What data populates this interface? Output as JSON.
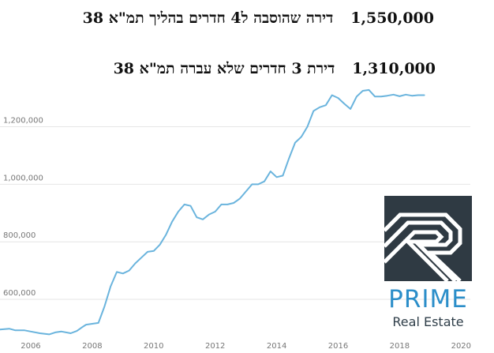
{
  "headlines": [
    {
      "price": "1,550,000",
      "text": "דירה שהוסבה ל4 חדרים בהליך תמ\"א 38"
    },
    {
      "price": "1,310,000",
      "text": "דירת 3 חדרים שלא עברה תמ\"א 38"
    }
  ],
  "logo": {
    "name": "PRIME",
    "subtitle": "Real Estate",
    "colors": {
      "mark_bg": "#2f3a43",
      "name": "#2b8ec9",
      "subtitle": "#2f3e49",
      "mark_line": "#ffffff"
    }
  },
  "chart_data": {
    "type": "line",
    "title": "",
    "xlabel": "",
    "ylabel": "",
    "x_ticks": [
      "2006",
      "2008",
      "2010",
      "2012",
      "2014",
      "2016",
      "2018",
      "2020"
    ],
    "y_ticks": [
      "600,000",
      "800,000",
      "1,000,000",
      "1,200,000"
    ],
    "xlim": [
      2005.0,
      2020.3
    ],
    "ylim": [
      460000,
      1380000
    ],
    "grid": "horizontal",
    "line_color": "#6ab4dd",
    "series": [
      {
        "x": [
          2005.0,
          2005.3,
          2005.5,
          2005.8,
          2006.0,
          2006.3,
          2006.6,
          2006.8,
          2007.0,
          2007.3,
          2007.5,
          2007.7,
          2007.8,
          2008.0,
          2008.2,
          2008.4,
          2008.6,
          2008.8,
          2009.0,
          2009.2,
          2009.4,
          2009.6,
          2009.8,
          2010.0,
          2010.2,
          2010.4,
          2010.6,
          2010.8,
          2011.0,
          2011.2,
          2011.4,
          2011.6,
          2011.8,
          2012.0,
          2012.2,
          2012.4,
          2012.6,
          2012.8,
          2013.0,
          2013.2,
          2013.4,
          2013.6,
          2013.8,
          2014.0,
          2014.2,
          2014.4,
          2014.6,
          2014.8,
          2015.0,
          2015.2,
          2015.4,
          2015.6,
          2015.8,
          2016.0,
          2016.2,
          2016.4,
          2016.6,
          2016.8,
          2017.0,
          2017.2,
          2017.4,
          2017.6,
          2017.8,
          2018.0,
          2018.2,
          2018.4,
          2018.6,
          2018.8
        ],
        "y": [
          495000,
          498000,
          492000,
          492000,
          488000,
          482000,
          478000,
          485000,
          488000,
          482000,
          490000,
          505000,
          512000,
          515000,
          518000,
          575000,
          645000,
          695000,
          690000,
          700000,
          725000,
          745000,
          765000,
          768000,
          790000,
          825000,
          870000,
          905000,
          930000,
          925000,
          885000,
          878000,
          895000,
          905000,
          930000,
          930000,
          935000,
          950000,
          975000,
          1000000,
          1000000,
          1010000,
          1045000,
          1025000,
          1030000,
          1090000,
          1145000,
          1165000,
          1200000,
          1255000,
          1268000,
          1275000,
          1310000,
          1300000,
          1280000,
          1262000,
          1305000,
          1325000,
          1328000,
          1305000,
          1305000,
          1308000,
          1312000,
          1306000,
          1312000,
          1308000,
          1310000,
          1310000
        ]
      }
    ]
  }
}
